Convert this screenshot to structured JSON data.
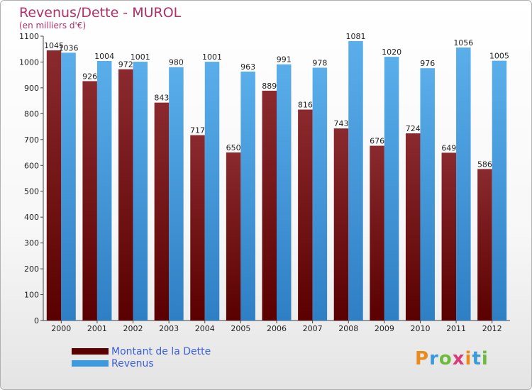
{
  "chart_data": {
    "type": "bar",
    "title": "Revenus/Dette - MUROL",
    "subtitle": "(en milliers d'€)",
    "categories": [
      "2000",
      "2001",
      "2002",
      "2003",
      "2004",
      "2005",
      "2006",
      "2007",
      "2008",
      "2009",
      "2010",
      "2011",
      "2012"
    ],
    "series": [
      {
        "name": "Montant de la Dette",
        "color": "#6e0f14",
        "values": [
          1045,
          926,
          972,
          843,
          717,
          650,
          889,
          816,
          743,
          676,
          724,
          649,
          586
        ]
      },
      {
        "name": "Revenus",
        "color": "#3c9be0",
        "values": [
          1036,
          1004,
          1001,
          980,
          1001,
          963,
          991,
          978,
          1081,
          1020,
          976,
          1056,
          1005
        ]
      }
    ],
    "ylim": [
      0,
      1100
    ],
    "yticks": [
      0,
      100,
      200,
      300,
      400,
      500,
      600,
      700,
      800,
      900,
      1000,
      1100
    ],
    "grid": false,
    "legend_position": "bottom-left"
  },
  "logo": {
    "letters": [
      "P",
      "r",
      "o",
      "x",
      "i",
      "t",
      "i"
    ],
    "colors": [
      "#e98a1a",
      "#3a9ad9",
      "#6dbb3c",
      "#d83a7a",
      "#e98a1a",
      "#3a9ad9",
      "#6dbb3c"
    ]
  }
}
